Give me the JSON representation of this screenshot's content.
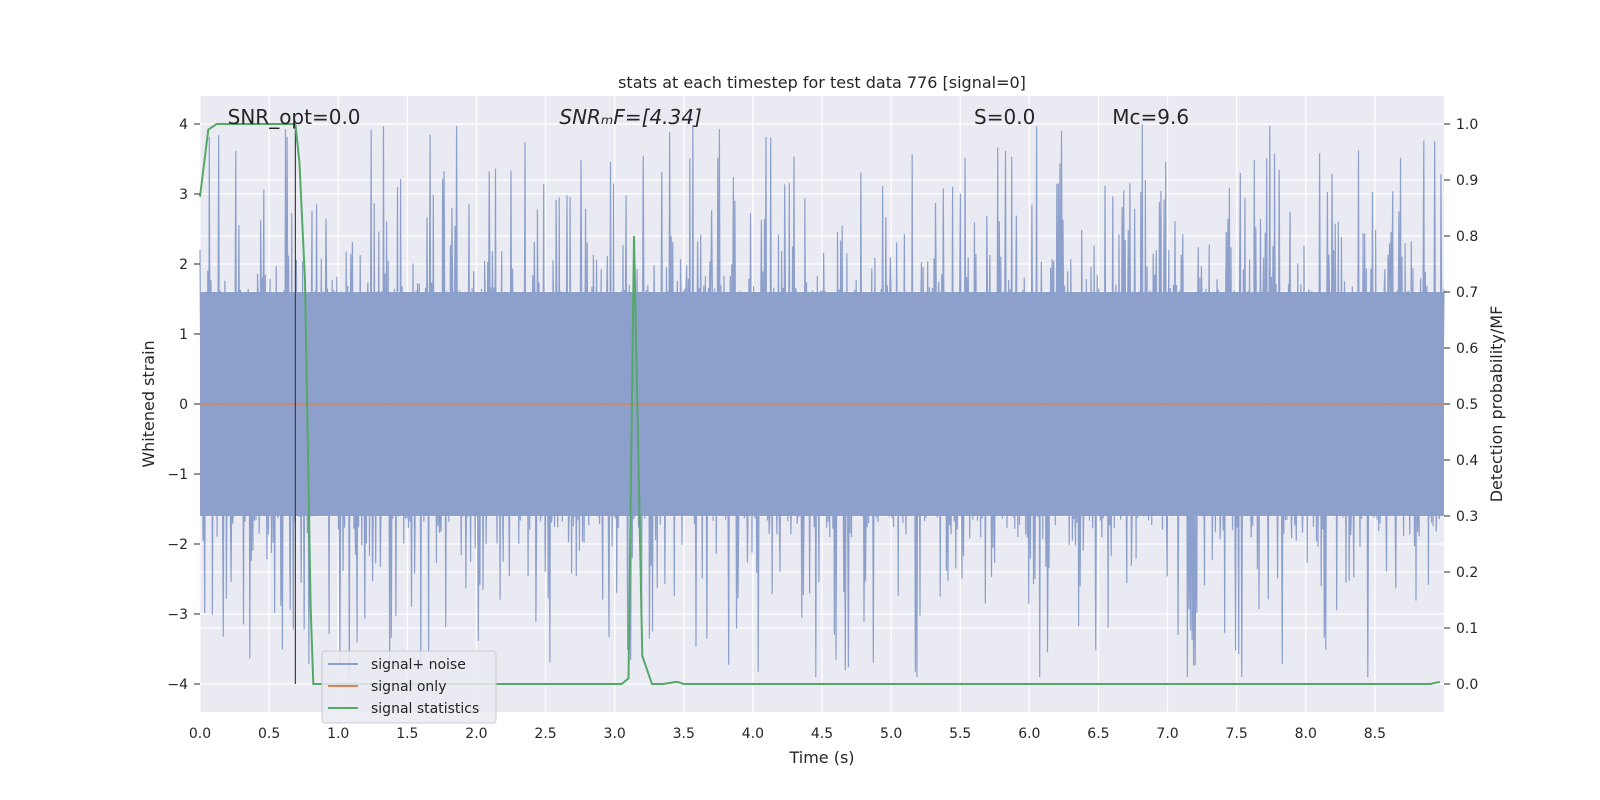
{
  "chart_data": {
    "type": "line",
    "title": "stats at each timestep for test data 776 [signal=0]",
    "xlabel": "Time (s)",
    "ylabel": "Whitened strain",
    "ylabel_right": "Detection probability/MF",
    "xlim": [
      0.0,
      9.0
    ],
    "ylim": [
      -4.4,
      4.4
    ],
    "ylim_right": [
      -0.05,
      1.05
    ],
    "xticks": [
      "0.0",
      "0.5",
      "1.0",
      "1.5",
      "2.0",
      "2.5",
      "3.0",
      "3.5",
      "4.0",
      "4.5",
      "5.0",
      "5.5",
      "6.0",
      "6.5",
      "7.0",
      "7.5",
      "8.0",
      "8.5"
    ],
    "yticks": [
      "4",
      "3",
      "2",
      "1",
      "0",
      "−1",
      "−2",
      "−3",
      "−4"
    ],
    "yticks_right": [
      "1.0",
      "0.9",
      "0.8",
      "0.7",
      "0.6",
      "0.5",
      "0.4",
      "0.3",
      "0.2",
      "0.1",
      "0.0"
    ],
    "annotations": [
      {
        "name": "snr-opt",
        "text": "SNR_opt=0.0",
        "x": 0.2
      },
      {
        "name": "snr-mf",
        "text": "SNRₘF=[4.34]",
        "x": 2.6
      },
      {
        "name": "s-value",
        "text": "S=0.0",
        "x": 5.6
      },
      {
        "name": "mc-value",
        "text": "Mᴄ=9.6",
        "x": 6.6
      }
    ],
    "vertical_marker_x": 0.69,
    "legend": [
      "signal+ noise",
      "signal only",
      "signal statistics"
    ],
    "legend_position": "lower-left",
    "series": [
      {
        "name": "signal+ noise",
        "color": "#8da0cb",
        "description_amplitude_band": [
          -1.6,
          1.6
        ],
        "peak_max": 4.0,
        "peak_min": -3.9
      },
      {
        "name": "signal only",
        "color": "#dd8452",
        "x": [
          0.0,
          9.0
        ],
        "y": [
          0.0,
          0.0
        ]
      },
      {
        "name": "signal statistics",
        "color": "#55a868",
        "axis": "right",
        "x": [
          0.0,
          0.06,
          0.12,
          0.2,
          0.3,
          0.4,
          0.5,
          0.6,
          0.69,
          0.72,
          0.76,
          0.8,
          0.82,
          0.9,
          1.0,
          1.5,
          2.0,
          2.5,
          3.0,
          3.05,
          3.1,
          3.14,
          3.2,
          3.27,
          3.35,
          3.45,
          3.5,
          4.0,
          5.0,
          6.0,
          7.0,
          8.0,
          8.5,
          8.9,
          8.97
        ],
        "y": [
          0.87,
          0.99,
          1.0,
          1.0,
          1.0,
          1.0,
          1.0,
          1.0,
          1.0,
          0.93,
          0.72,
          0.14,
          0.0,
          0.0,
          0.0,
          0.0,
          0.0,
          0.0,
          0.0,
          0.0,
          0.01,
          0.8,
          0.05,
          0.0,
          0.0,
          0.004,
          0.0,
          0.0,
          0.0,
          0.0,
          0.0,
          0.0,
          0.0,
          0.0,
          0.004
        ]
      }
    ]
  }
}
